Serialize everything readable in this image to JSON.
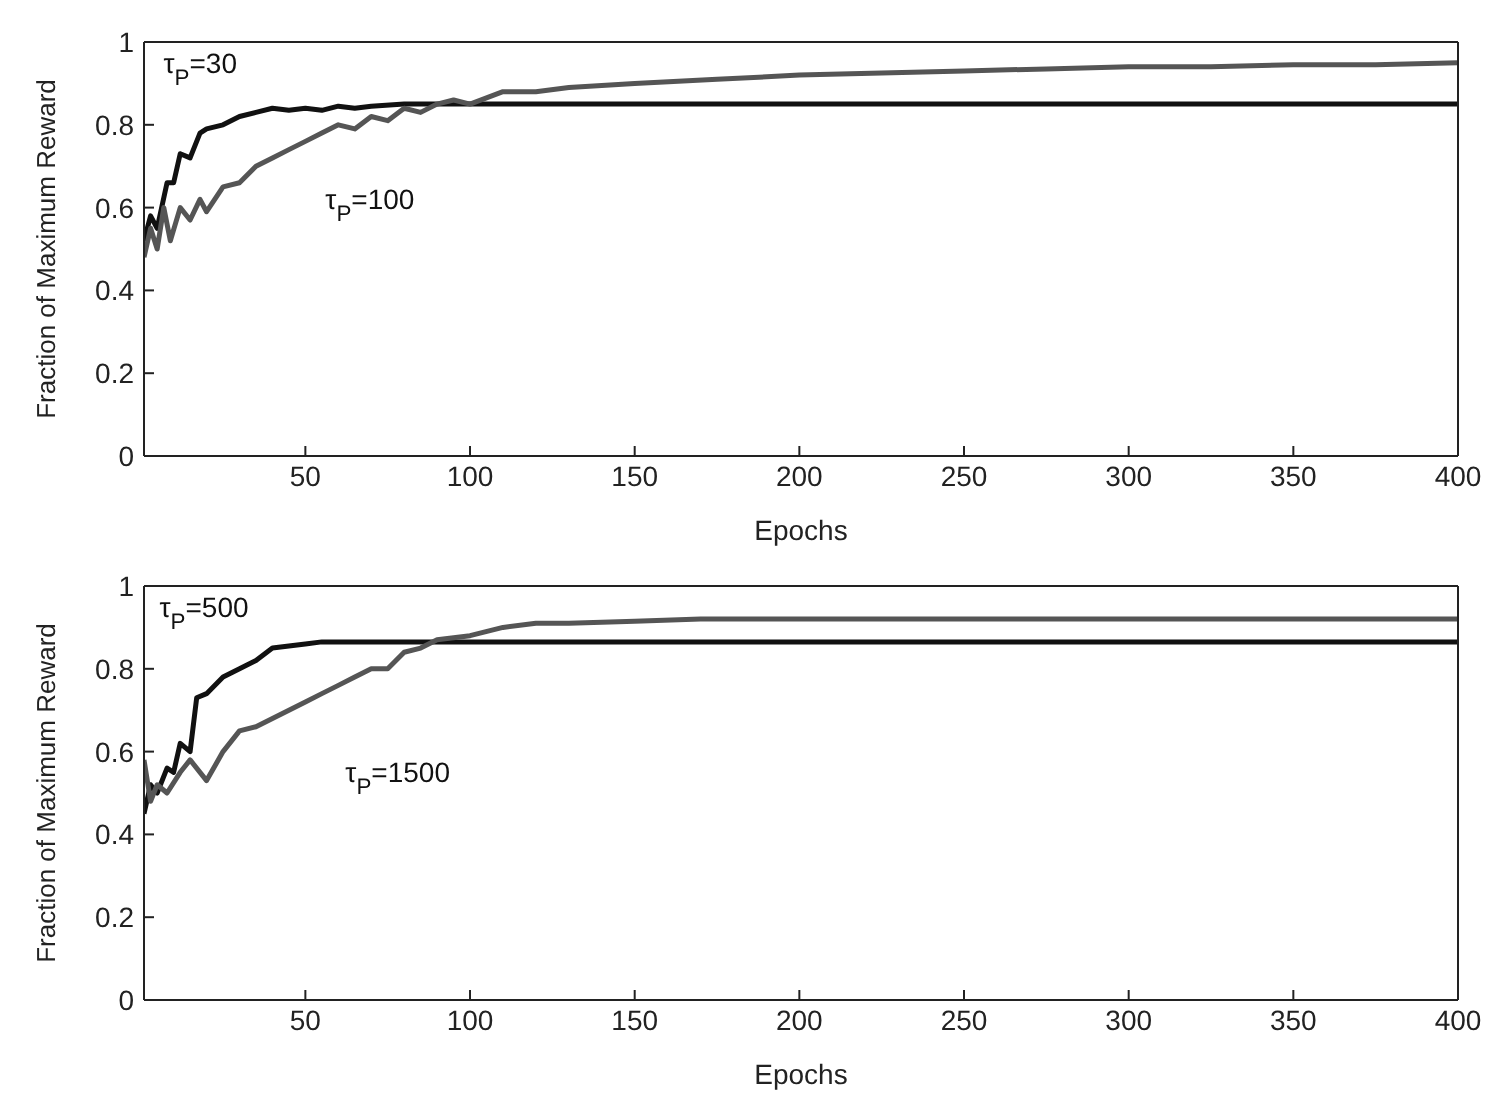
{
  "chart_data": [
    {
      "type": "line",
      "xlabel": "Epochs",
      "ylabel": "Fraction of Maximum Reward",
      "xlim": [
        1,
        400
      ],
      "ylim": [
        0,
        1
      ],
      "xticks": [
        50,
        100,
        150,
        200,
        250,
        300,
        350,
        400
      ],
      "yticks": [
        0,
        0.2,
        0.4,
        0.6,
        0.8,
        1
      ],
      "grid": false,
      "legend": false,
      "marker": "none",
      "line_style": "solid",
      "series": [
        {
          "name": "τ$_{P}$=30",
          "color": "#111111",
          "x": [
            1,
            3,
            5,
            8,
            10,
            12,
            15,
            18,
            20,
            25,
            30,
            35,
            40,
            45,
            50,
            55,
            60,
            65,
            70,
            80,
            90,
            100,
            400
          ],
          "values": [
            0.52,
            0.58,
            0.55,
            0.66,
            0.66,
            0.73,
            0.72,
            0.78,
            0.79,
            0.8,
            0.82,
            0.83,
            0.84,
            0.835,
            0.84,
            0.835,
            0.845,
            0.84,
            0.845,
            0.85,
            0.85,
            0.85,
            0.85
          ]
        },
        {
          "name": "τ$_{P}$=100",
          "color": "#555555",
          "x": [
            1,
            3,
            5,
            7,
            9,
            12,
            15,
            18,
            20,
            25,
            30,
            35,
            40,
            45,
            50,
            55,
            60,
            65,
            70,
            75,
            80,
            85,
            90,
            95,
            100,
            110,
            120,
            130,
            150,
            175,
            200,
            225,
            250,
            275,
            300,
            325,
            350,
            375,
            400
          ],
          "values": [
            0.48,
            0.55,
            0.5,
            0.6,
            0.52,
            0.6,
            0.57,
            0.62,
            0.59,
            0.65,
            0.66,
            0.7,
            0.72,
            0.74,
            0.76,
            0.78,
            0.8,
            0.79,
            0.82,
            0.81,
            0.84,
            0.83,
            0.85,
            0.86,
            0.85,
            0.88,
            0.88,
            0.89,
            0.9,
            0.91,
            0.92,
            0.925,
            0.93,
            0.935,
            0.94,
            0.94,
            0.945,
            0.945,
            0.95
          ]
        }
      ]
    },
    {
      "type": "line",
      "xlabel": "Epochs",
      "ylabel": "Fraction of Maximum Reward",
      "xlim": [
        1,
        400
      ],
      "ylim": [
        0,
        1
      ],
      "xticks": [
        50,
        100,
        150,
        200,
        250,
        300,
        350,
        400
      ],
      "yticks": [
        0,
        0.2,
        0.4,
        0.6,
        0.8,
        1
      ],
      "grid": false,
      "legend": false,
      "marker": "none",
      "line_style": "solid",
      "series": [
        {
          "name": "τ$_{P}$=500",
          "color": "#111111",
          "x": [
            1,
            3,
            5,
            8,
            10,
            12,
            15,
            17,
            20,
            25,
            30,
            35,
            40,
            45,
            50,
            55,
            60,
            400
          ],
          "values": [
            0.45,
            0.52,
            0.5,
            0.56,
            0.55,
            0.62,
            0.6,
            0.73,
            0.74,
            0.78,
            0.8,
            0.82,
            0.85,
            0.855,
            0.86,
            0.865,
            0.865,
            0.865
          ]
        },
        {
          "name": "τ$_{P}$=1500",
          "color": "#555555",
          "x": [
            1,
            3,
            5,
            8,
            12,
            15,
            20,
            25,
            30,
            35,
            40,
            45,
            50,
            55,
            60,
            65,
            70,
            75,
            80,
            85,
            90,
            100,
            110,
            120,
            130,
            150,
            170,
            200,
            400
          ],
          "values": [
            0.58,
            0.48,
            0.52,
            0.5,
            0.55,
            0.58,
            0.53,
            0.6,
            0.65,
            0.66,
            0.68,
            0.7,
            0.72,
            0.74,
            0.76,
            0.78,
            0.8,
            0.8,
            0.84,
            0.85,
            0.87,
            0.88,
            0.9,
            0.91,
            0.91,
            0.915,
            0.92,
            0.92,
            0.92
          ]
        }
      ]
    }
  ]
}
